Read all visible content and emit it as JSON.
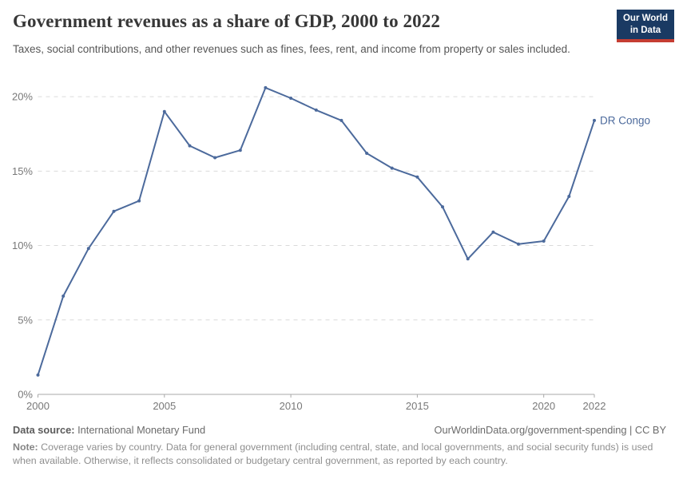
{
  "header": {
    "title": "Government revenues as a share of GDP, 2000 to 2022",
    "subtitle": "Taxes, social contributions, and other revenues such as fines, fees, rent, and income from property or sales included.",
    "logo": {
      "line1": "Our World",
      "line2": "in Data",
      "bg_color": "#1a3a63",
      "stripe_color": "#c53d33"
    }
  },
  "chart_data": {
    "type": "line",
    "title": "Government revenues as a share of GDP, 2000 to 2022",
    "xlabel": "",
    "ylabel": "",
    "x": [
      2000,
      2001,
      2002,
      2003,
      2004,
      2005,
      2006,
      2007,
      2008,
      2009,
      2010,
      2011,
      2012,
      2013,
      2014,
      2015,
      2016,
      2017,
      2018,
      2019,
      2020,
      2021,
      2022
    ],
    "series": [
      {
        "name": "DR Congo",
        "color": "#4C6A9C",
        "values": [
          1.3,
          6.6,
          9.8,
          12.3,
          13.0,
          19.0,
          16.7,
          15.9,
          16.4,
          20.6,
          19.9,
          19.1,
          18.4,
          16.2,
          15.2,
          14.6,
          12.6,
          9.1,
          10.9,
          10.1,
          10.3,
          13.3,
          18.4
        ]
      }
    ],
    "xlim": [
      2000,
      2022
    ],
    "ylim": [
      0,
      21.4
    ],
    "yticks": [
      0,
      5,
      10,
      15,
      20
    ],
    "ytick_labels": [
      "0%",
      "5%",
      "10%",
      "15%",
      "20%"
    ],
    "xticks": [
      2000,
      2005,
      2010,
      2015,
      2020,
      2022
    ],
    "xtick_labels": [
      "2000",
      "2005",
      "2010",
      "2015",
      "2020",
      "2022"
    ],
    "grid": "horizontal-dashed",
    "legend_position": "end-of-line-label",
    "colors": {
      "gridline": "#dadada",
      "axis": "#a8a8a8",
      "tick_text": "#787878"
    }
  },
  "footer": {
    "datasource_label": "Data source:",
    "datasource_value": " International Monetary Fund",
    "link": "OurWorldinData.org/government-spending | CC BY",
    "note_label": "Note:",
    "note_text": " Coverage varies by country. Data for general government (including central, state, and local governments, and social security funds) is used when available. Otherwise, it reflects consolidated or budgetary central government, as reported by each country."
  }
}
